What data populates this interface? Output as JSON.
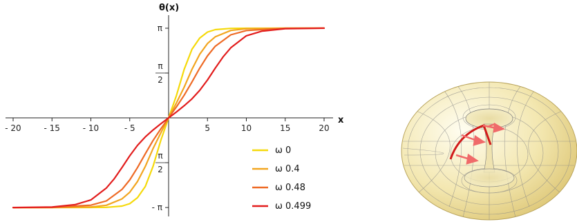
{
  "chart_data": {
    "type": "line",
    "ylabel": "θ(x)",
    "xlabel": "x",
    "xlim": [
      -20,
      20
    ],
    "ylim": [
      -3.14159,
      3.14159
    ],
    "x_ticks": [
      {
        "value": -20,
        "label": "- 20"
      },
      {
        "value": -15,
        "label": "- 15"
      },
      {
        "value": -10,
        "label": "- 10"
      },
      {
        "value": -5,
        "label": "- 5"
      },
      {
        "value": 5,
        "label": "5"
      },
      {
        "value": 10,
        "label": "10"
      },
      {
        "value": 15,
        "label": "15"
      },
      {
        "value": 20,
        "label": "20"
      }
    ],
    "y_ticks": [
      {
        "value": 3.14159,
        "label": "π",
        "fraction": false
      },
      {
        "value": 1.5708,
        "num": "π",
        "den": "2",
        "fraction": true
      },
      {
        "value": -1.5708,
        "num": "π",
        "den": "2",
        "fraction": true
      },
      {
        "value": -3.14159,
        "label": "- π",
        "fraction": false
      }
    ],
    "series": [
      {
        "name": "ω  0",
        "omega": 0,
        "color": "#f5d90a",
        "x": [
          -20,
          -15,
          -10,
          -8,
          -6,
          -5,
          -4,
          -3,
          -2,
          -1,
          0,
          1,
          2,
          3,
          4,
          5,
          6,
          8,
          10,
          15,
          20
        ],
        "y": [
          -3.14159,
          -3.14158,
          -3.1407,
          -3.1352,
          -3.0912,
          -3.0063,
          -2.7982,
          -2.4025,
          -1.6982,
          -0.7813,
          0,
          0.7813,
          1.6982,
          2.4025,
          2.7982,
          3.0063,
          3.0912,
          3.1352,
          3.1407,
          3.14158,
          3.14159
        ]
      },
      {
        "name": "ω  0.4",
        "omega": 0.4,
        "color": "#f2a51f",
        "x": [
          -20,
          -15,
          -10,
          -8,
          -6,
          -5,
          -4,
          -3,
          -2,
          -1,
          0,
          1,
          2,
          3,
          4,
          5,
          6,
          8,
          10,
          15,
          20
        ],
        "y": [
          -3.14159,
          -3.1412,
          -3.1222,
          -3.0622,
          -2.8413,
          -2.6068,
          -2.2305,
          -1.6997,
          -1.0749,
          -0.5206,
          0,
          0.5206,
          1.0749,
          1.6997,
          2.2305,
          2.6068,
          2.8413,
          3.0622,
          3.1222,
          3.1412,
          3.14159
        ]
      },
      {
        "name": "ω  0.48",
        "omega": 0.48,
        "color": "#ee6a25",
        "x": [
          -20,
          -15,
          -10,
          -8,
          -6,
          -5,
          -4,
          -3,
          -2,
          -1,
          0,
          1,
          2,
          3,
          4,
          5,
          6,
          8,
          10,
          15,
          20
        ],
        "y": [
          -3.14159,
          -3.1394,
          -3.0609,
          -2.9101,
          -2.5103,
          -2.1736,
          -1.7412,
          -1.2584,
          -0.7919,
          -0.3839,
          0,
          0.3839,
          0.7919,
          1.2584,
          1.7412,
          2.1736,
          2.5103,
          2.9101,
          3.0609,
          3.1394,
          3.14159
        ]
      },
      {
        "name": "ω  0.499",
        "omega": 0.499,
        "color": "#e21c1c",
        "x": [
          -20,
          -15,
          -12,
          -10,
          -8,
          -7,
          -6,
          -5,
          -4,
          -3,
          -2,
          -1,
          0,
          1,
          2,
          3,
          4,
          5,
          6,
          7,
          8,
          10,
          12,
          15,
          20
        ],
        "y": [
          -3.1414,
          -3.1234,
          -3.0378,
          -2.8764,
          -2.4565,
          -2.1358,
          -1.7406,
          -1.3292,
          -0.9641,
          -0.6661,
          -0.4241,
          -0.2058,
          0,
          0.2058,
          0.4241,
          0.6661,
          0.9641,
          1.3292,
          1.7406,
          2.1358,
          2.4565,
          2.8764,
          3.0378,
          3.1234,
          3.1414
        ]
      }
    ]
  },
  "torus": {
    "surface_color": "#f3e7b0",
    "grid_color": "#777777",
    "curve_color": "#d11a1a",
    "arrow_color": "#f06a6a"
  }
}
